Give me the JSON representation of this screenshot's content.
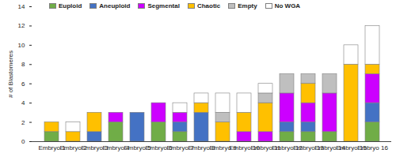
{
  "chart_data": {
    "type": "bar",
    "stacked": true,
    "y_label": "# of Blastomeres",
    "categories": [
      "Embryo 1",
      "Embryo 2",
      "Embryo 3",
      "Embryo 4",
      "Embryo 5",
      "Embryo 6",
      "Embryo 7",
      "Embryo 8",
      "Embryo 9",
      "Embryo 10",
      "Embryo 11",
      "Embryo 12",
      "Embryo 13",
      "Embryo 14",
      "Embryo 15",
      "Embryo 16"
    ],
    "series": [
      {
        "name": "Euploid",
        "color": "#70ad47",
        "values": [
          1,
          0,
          0,
          2,
          0,
          2,
          1,
          0,
          0,
          0,
          0,
          1,
          1,
          1,
          0,
          2
        ]
      },
      {
        "name": "Aneuploid",
        "color": "#4472c4",
        "values": [
          0,
          0,
          1,
          0,
          3,
          0,
          1,
          3,
          0,
          0,
          0,
          1,
          1,
          0,
          0,
          2
        ]
      },
      {
        "name": "Segmental",
        "color": "#cc00ff",
        "values": [
          0,
          0,
          0,
          1,
          0,
          2,
          1,
          0,
          0,
          1,
          1,
          3,
          2,
          4,
          0,
          3
        ]
      },
      {
        "name": "Chaotic",
        "color": "#ffc000",
        "values": [
          1,
          1,
          2,
          0,
          0,
          0,
          0,
          1,
          2,
          2,
          3,
          0,
          2,
          0,
          8,
          1
        ]
      },
      {
        "name": "Empty",
        "color": "#bfbfbf",
        "values": [
          0,
          0,
          0,
          0,
          0,
          0,
          0,
          0,
          1,
          0,
          1,
          2,
          1,
          2,
          0,
          0
        ]
      },
      {
        "name": "No WGA",
        "color": "#ffffff",
        "values": [
          0,
          1,
          0,
          0,
          0,
          0,
          1,
          1,
          2,
          2,
          1,
          0,
          0,
          0,
          2,
          4
        ]
      }
    ],
    "ylim": [
      0,
      14
    ],
    "yticks": [
      0,
      2,
      4,
      6,
      8,
      10,
      12,
      14
    ],
    "legend": "top",
    "grid": false
  }
}
